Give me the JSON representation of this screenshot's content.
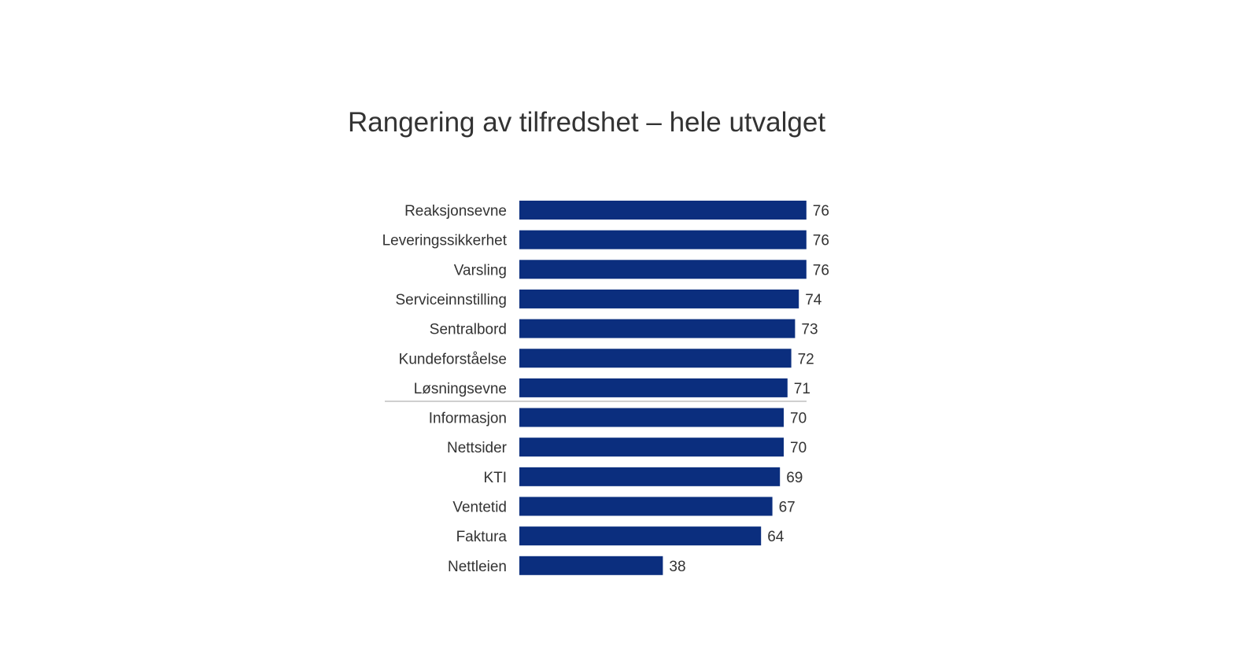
{
  "chart_data": {
    "type": "bar",
    "orientation": "horizontal",
    "title": "Rangering av tilfredshet – hele utvalget",
    "categories": [
      "Reaksjonsevne",
      "Leveringssikkerhet",
      "Varsling",
      "Serviceinnstilling",
      "Sentralbord",
      "Kundeforståelse",
      "Løsningsevne",
      "Informasjon",
      "Nettsider",
      "KTI",
      "Ventetid",
      "Faktura",
      "Nettleien"
    ],
    "values": [
      76,
      76,
      76,
      74,
      73,
      72,
      71,
      70,
      70,
      69,
      67,
      64,
      38
    ],
    "bar_color": "#0b2e7e",
    "xlim": [
      0,
      76
    ],
    "grid": false,
    "legend": "none"
  }
}
